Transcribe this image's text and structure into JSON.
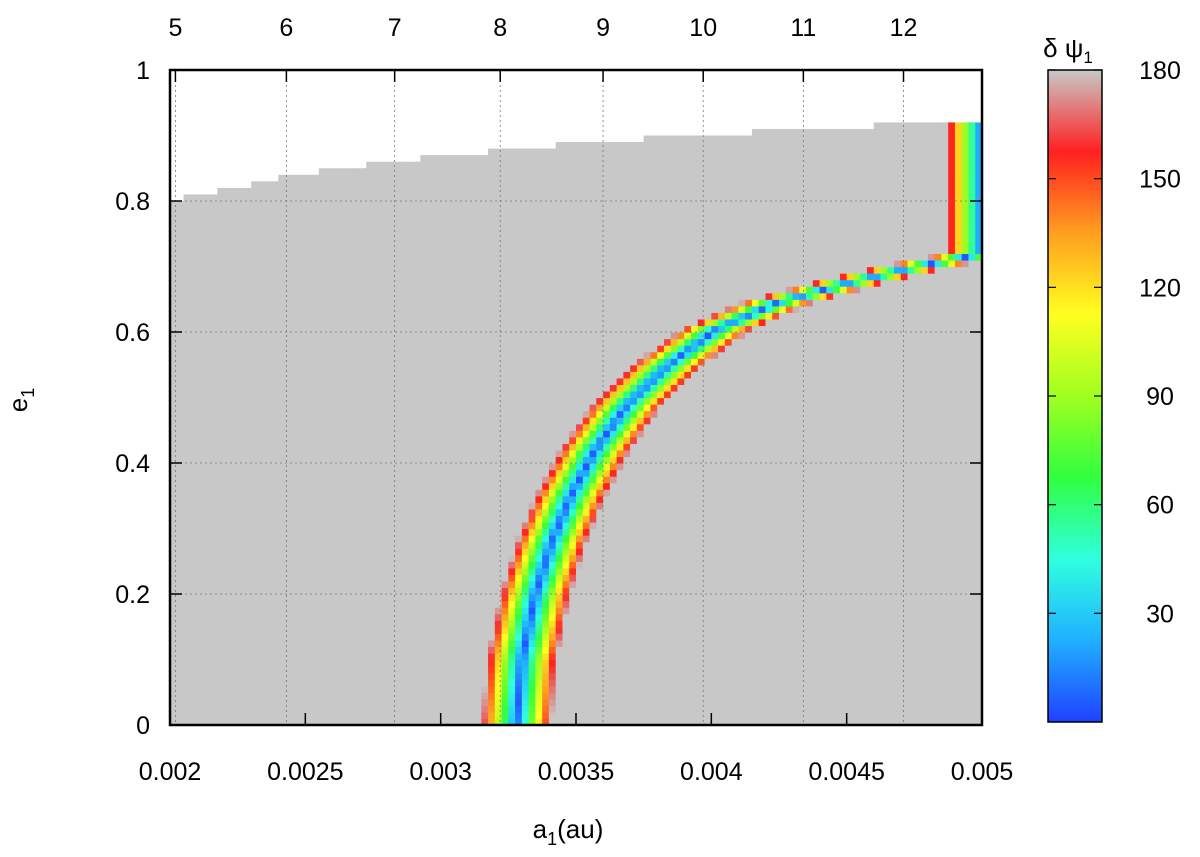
{
  "chart_data": {
    "type": "heatmap",
    "title": "",
    "xlabel": {
      "base": "a",
      "sub": "1",
      "suffix": "(au)"
    },
    "ylabel": {
      "base": "e",
      "sub": "1"
    },
    "xlim": [
      0.002,
      0.005
    ],
    "ylim": [
      0,
      1
    ],
    "x_ticks": [
      "0.002",
      "0.0025",
      "0.003",
      "0.0035",
      "0.004",
      "0.0045",
      "0.005"
    ],
    "x_tick_values": [
      0.002,
      0.0025,
      0.003,
      0.0035,
      0.004,
      0.0045,
      0.005
    ],
    "y_ticks": [
      "0",
      "0.2",
      "0.4",
      "0.6",
      "0.8",
      "1"
    ],
    "y_tick_values": [
      0,
      0.2,
      0.4,
      0.6,
      0.8,
      1
    ],
    "top_axis": {
      "ticks": [
        "5",
        "6",
        "7",
        "8",
        "9",
        "10",
        "11",
        "12"
      ],
      "tick_positions_a1": [
        0.00202,
        0.00243,
        0.00283,
        0.00322,
        0.0036,
        0.00397,
        0.00434,
        0.00471
      ]
    },
    "colorbar": {
      "title": "δ ψ",
      "title_sub": "1",
      "range": [
        0,
        180
      ],
      "ticks": [
        "30",
        "60",
        "90",
        "120",
        "150",
        "180"
      ],
      "tick_values": [
        30,
        60,
        90,
        120,
        150,
        180
      ],
      "colors": [
        "#2040ff",
        "#20b0ff",
        "#30ffe0",
        "#30ff40",
        "#a0ff20",
        "#ffff20",
        "#ff9f20",
        "#ff2020",
        "#c8c8c8"
      ]
    },
    "grid": true,
    "background_value": 180,
    "valid_region_boundary": {
      "a1": [
        0.002,
        0.00225,
        0.0025,
        0.00275,
        0.003,
        0.00325,
        0.0035,
        0.00375,
        0.004,
        0.00425,
        0.0045,
        0.00475,
        0.005
      ],
      "e1_max": [
        0.8,
        0.822,
        0.842,
        0.857,
        0.868,
        0.878,
        0.888,
        0.895,
        0.901,
        0.908,
        0.913,
        0.918,
        0.923
      ]
    },
    "resonance_ridge": {
      "a1": [
        0.00328,
        0.0033,
        0.00335,
        0.00341,
        0.00348,
        0.00357,
        0.00369,
        0.00384,
        0.00402,
        0.00424,
        0.0045,
        0.00475,
        0.005
      ],
      "e1": [
        0.0,
        0.1,
        0.2,
        0.28,
        0.35,
        0.42,
        0.49,
        0.55,
        0.605,
        0.645,
        0.675,
        0.7,
        0.72
      ],
      "min_value": 5,
      "half_width_a1": 0.00013
    }
  }
}
